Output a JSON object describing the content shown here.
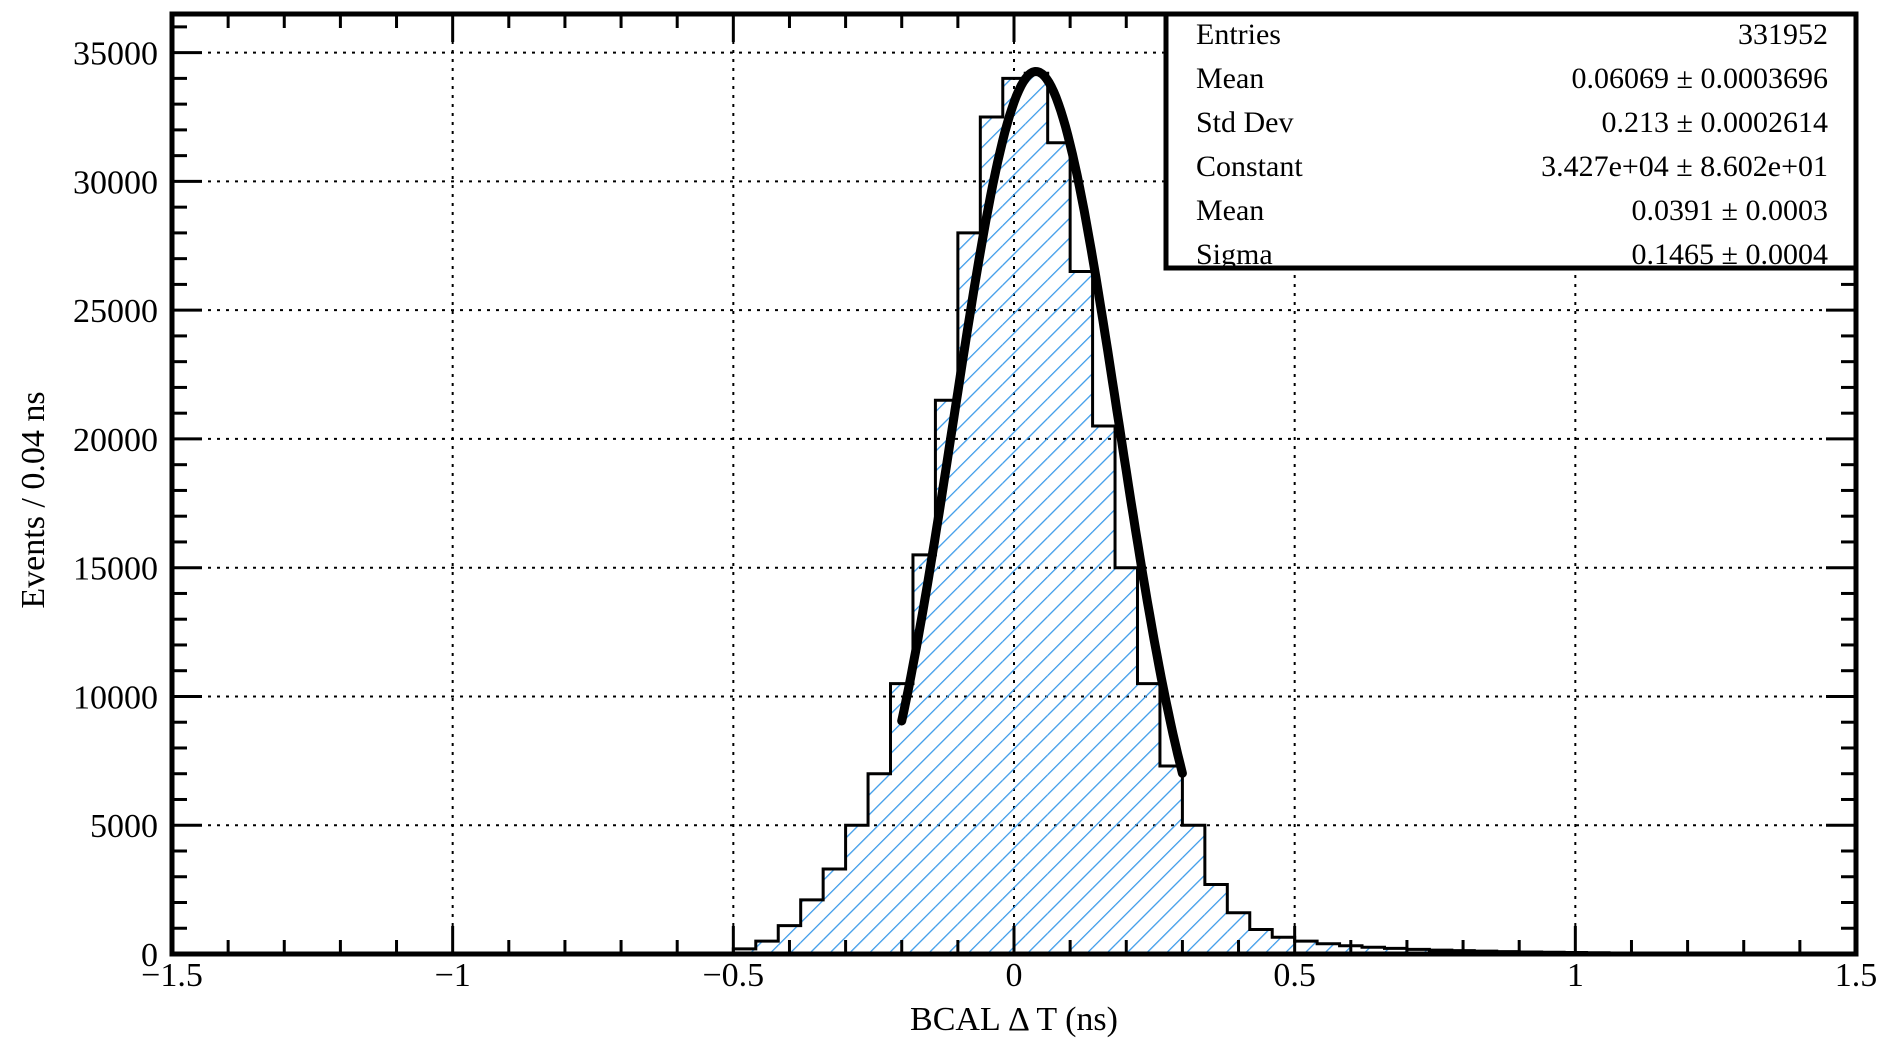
{
  "chart_data": {
    "type": "bar",
    "title": "",
    "xlabel": "BCAL Δ T (ns)",
    "ylabel": "Events / 0.04 ns",
    "xlim": [
      -1.5,
      1.5
    ],
    "ylim": [
      0,
      36500
    ],
    "grid": true,
    "bin_width": 0.04,
    "x_ticks": [
      "−1.5",
      "−1",
      "−0.5",
      "0",
      "0.5",
      "1",
      "1.5"
    ],
    "x_tick_values": [
      -1.5,
      -1,
      -0.5,
      0,
      0.5,
      1,
      1.5
    ],
    "y_ticks": [
      "0",
      "5000",
      "10000",
      "15000",
      "20000",
      "25000",
      "30000",
      "35000"
    ],
    "y_tick_values": [
      0,
      5000,
      10000,
      15000,
      20000,
      25000,
      30000,
      35000
    ],
    "histogram": {
      "bin_edges": [
        -0.5,
        -0.46,
        -0.42,
        -0.38,
        -0.34,
        -0.3,
        -0.26,
        -0.22,
        -0.18,
        -0.14,
        -0.1,
        -0.06,
        -0.02,
        0.02,
        0.06,
        0.1,
        0.14,
        0.18,
        0.22,
        0.26,
        0.3,
        0.34,
        0.38,
        0.42,
        0.46,
        0.5,
        0.54,
        0.58,
        0.62,
        0.66,
        0.7,
        0.74,
        0.78,
        0.82,
        0.86,
        0.9,
        0.94,
        0.98,
        1.02,
        1.06,
        1.1
      ],
      "counts": [
        200,
        500,
        1100,
        2100,
        3300,
        5000,
        7000,
        10500,
        15500,
        21500,
        28000,
        32500,
        34000,
        34200,
        31500,
        26500,
        20500,
        15000,
        10500,
        7300,
        5000,
        2700,
        1600,
        950,
        650,
        500,
        400,
        320,
        260,
        220,
        180,
        150,
        130,
        110,
        90,
        80,
        70,
        60,
        50,
        40
      ],
      "fill_color": "#3d9be9"
    },
    "fit": {
      "function": "gaus",
      "constant": 34270,
      "mean": 0.0391,
      "sigma": 0.1465,
      "range": [
        -0.2,
        0.3
      ],
      "color": "#000000"
    }
  },
  "stats_box": {
    "rows": [
      {
        "label": "Entries",
        "value": "331952"
      },
      {
        "label": "Mean",
        "value": "0.06069 ± 0.0003696"
      },
      {
        "label": "Std Dev",
        "value": "0.213 ± 0.0002614"
      },
      {
        "label": "Constant",
        "value": "3.427e+04 ± 8.602e+01"
      },
      {
        "label": "Mean",
        "value": "0.0391 ± 0.0003"
      },
      {
        "label": "Sigma",
        "value": "0.1465 ± 0.0004"
      }
    ]
  }
}
